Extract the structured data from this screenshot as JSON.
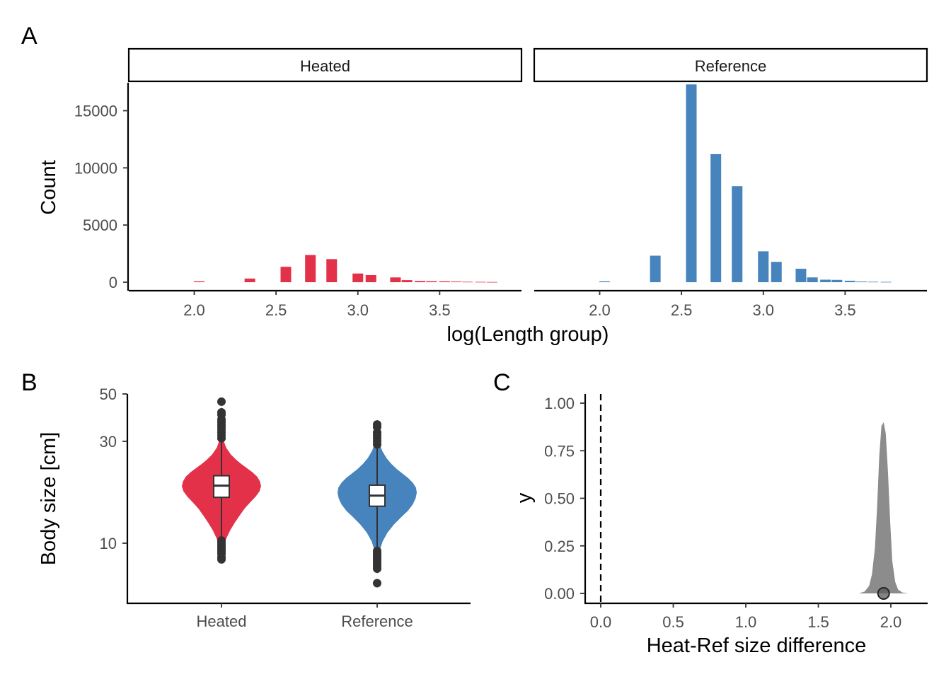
{
  "panels": {
    "a_letter": "A",
    "b_letter": "B",
    "c_letter": "C"
  },
  "chart_data": [
    {
      "type": "bar",
      "panel": "A",
      "xlabel": "log(Length group)",
      "ylabel": "Count",
      "xlim": [
        1.6,
        4.0
      ],
      "ylim": [
        0,
        18000
      ],
      "xticks": [
        "2.0",
        "2.5",
        "3.0",
        "3.5"
      ],
      "yticks": [
        "0",
        "5000",
        "10000",
        "15000"
      ],
      "facets": [
        {
          "name": "Heated",
          "color": "#E4314A",
          "bars": [
            {
              "x": 2.03,
              "y": 80
            },
            {
              "x": 2.34,
              "y": 320
            },
            {
              "x": 2.56,
              "y": 1350
            },
            {
              "x": 2.71,
              "y": 2380
            },
            {
              "x": 2.84,
              "y": 2020
            },
            {
              "x": 3.0,
              "y": 760
            },
            {
              "x": 3.08,
              "y": 620
            },
            {
              "x": 3.23,
              "y": 420
            },
            {
              "x": 3.3,
              "y": 180
            },
            {
              "x": 3.38,
              "y": 110
            },
            {
              "x": 3.45,
              "y": 90
            },
            {
              "x": 3.53,
              "y": 80
            },
            {
              "x": 3.6,
              "y": 60
            },
            {
              "x": 3.67,
              "y": 40
            },
            {
              "x": 3.75,
              "y": 30
            },
            {
              "x": 3.82,
              "y": 20
            }
          ]
        },
        {
          "name": "Reference",
          "color": "#4783BC",
          "bars": [
            {
              "x": 2.03,
              "y": 80
            },
            {
              "x": 2.34,
              "y": 2320
            },
            {
              "x": 2.56,
              "y": 17300
            },
            {
              "x": 2.71,
              "y": 11200
            },
            {
              "x": 2.84,
              "y": 8400
            },
            {
              "x": 3.0,
              "y": 2700
            },
            {
              "x": 3.08,
              "y": 1780
            },
            {
              "x": 3.23,
              "y": 1180
            },
            {
              "x": 3.3,
              "y": 420
            },
            {
              "x": 3.38,
              "y": 220
            },
            {
              "x": 3.45,
              "y": 200
            },
            {
              "x": 3.53,
              "y": 130
            },
            {
              "x": 3.6,
              "y": 60
            },
            {
              "x": 3.67,
              "y": 40
            },
            {
              "x": 3.75,
              "y": 30
            }
          ]
        }
      ]
    },
    {
      "type": "violin",
      "panel": "B",
      "xlabel": "",
      "ylabel": "Body size [cm]",
      "y_scale": "log10",
      "ylim": [
        7,
        50
      ],
      "yticks": [
        {
          "label": "10",
          "value": 10
        },
        {
          "label": "30",
          "value": 30
        },
        {
          "label": "50",
          "value": 50
        }
      ],
      "groups": [
        {
          "name": "Heated",
          "color": "#E4314A",
          "box": {
            "q1": 16.4,
            "median": 18.6,
            "q3": 20.7,
            "whisker_low": 10.5,
            "whisker_high": 30.2
          },
          "density": [
            [
              8.5,
              0.015
            ],
            [
              9.5,
              0.05
            ],
            [
              10.5,
              0.12
            ],
            [
              11.5,
              0.22
            ],
            [
              12.5,
              0.34
            ],
            [
              13.5,
              0.46
            ],
            [
              14.5,
              0.58
            ],
            [
              15.5,
              0.72
            ],
            [
              16.5,
              0.86
            ],
            [
              17.5,
              0.96
            ],
            [
              18.5,
              1.0
            ],
            [
              19.5,
              0.97
            ],
            [
              20.5,
              0.9
            ],
            [
              21.5,
              0.78
            ],
            [
              22.5,
              0.64
            ],
            [
              23.5,
              0.5
            ],
            [
              24.5,
              0.38
            ],
            [
              26,
              0.24
            ],
            [
              28,
              0.12
            ],
            [
              30,
              0.06
            ],
            [
              32,
              0.03
            ],
            [
              35,
              0.015
            ],
            [
              40,
              0.006
            ],
            [
              45,
              0.002
            ]
          ],
          "outliers": [
            8.4,
            8.6,
            8.9,
            9.1,
            9.3,
            9.5,
            9.7,
            9.9,
            10.1,
            10.3,
            31,
            32,
            33,
            34,
            35,
            36,
            37,
            38,
            40,
            41,
            46
          ]
        },
        {
          "name": "Reference",
          "color": "#4783BC",
          "box": {
            "q1": 14.9,
            "median": 16.7,
            "q3": 18.7,
            "whisker_low": 9.5,
            "whisker_high": 28.2
          },
          "density": [
            [
              7.2,
              0.006
            ],
            [
              8.2,
              0.02
            ],
            [
              9.2,
              0.06
            ],
            [
              10.2,
              0.14
            ],
            [
              11.2,
              0.26
            ],
            [
              12.2,
              0.42
            ],
            [
              13.2,
              0.6
            ],
            [
              14.2,
              0.78
            ],
            [
              15.2,
              0.9
            ],
            [
              16.2,
              0.97
            ],
            [
              17.2,
              1.0
            ],
            [
              18.2,
              0.98
            ],
            [
              19.2,
              0.9
            ],
            [
              20.2,
              0.78
            ],
            [
              21.2,
              0.64
            ],
            [
              22.2,
              0.5
            ],
            [
              23.5,
              0.36
            ],
            [
              25,
              0.24
            ],
            [
              27,
              0.13
            ],
            [
              29,
              0.07
            ],
            [
              31,
              0.035
            ],
            [
              33,
              0.015
            ],
            [
              36,
              0.005
            ]
          ],
          "outliers": [
            6.5,
            7.6,
            7.8,
            8.0,
            8.2,
            8.4,
            8.6,
            8.8,
            9.0,
            9.2,
            29,
            30,
            31,
            32,
            33,
            35,
            36
          ]
        }
      ]
    },
    {
      "type": "area",
      "panel": "C",
      "xlabel": "Heat-Ref size difference",
      "ylabel": "y",
      "xlim": [
        -0.1,
        2.25
      ],
      "ylim": [
        -0.05,
        1.05
      ],
      "xticks": [
        "0.0",
        "0.5",
        "1.0",
        "1.5",
        "2.0"
      ],
      "yticks": [
        "0.00",
        "0.25",
        "0.50",
        "0.75",
        "1.00"
      ],
      "reference_line": {
        "x": 0.0,
        "style": "dashed"
      },
      "fill_color": "#8C8C8C",
      "density_x": [
        1.78,
        1.82,
        1.85,
        1.87,
        1.89,
        1.905,
        1.92,
        1.935,
        1.95,
        1.965,
        1.98,
        1.995,
        2.01,
        2.03,
        2.05,
        2.08,
        2.12
      ],
      "density_y": [
        0.0,
        0.01,
        0.04,
        0.1,
        0.24,
        0.45,
        0.72,
        0.88,
        0.9,
        0.84,
        0.64,
        0.38,
        0.17,
        0.06,
        0.02,
        0.005,
        0.0
      ],
      "point": {
        "x": 1.95,
        "y": 0.0
      }
    }
  ]
}
